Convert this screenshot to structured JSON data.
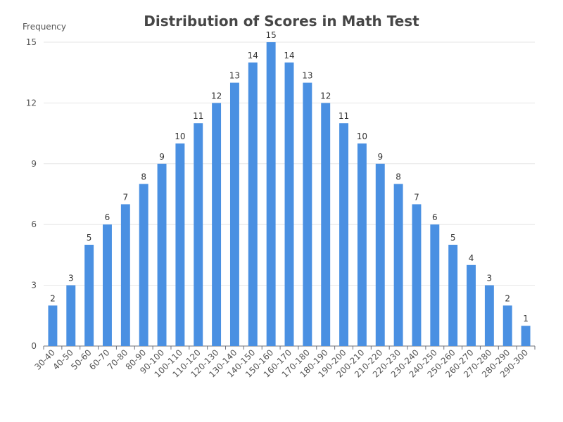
{
  "chart_data": {
    "type": "bar",
    "title": "Distribution of Scores in Math Test",
    "xlabel": "",
    "ylabel": "Frequency",
    "ylim": [
      0,
      15
    ],
    "yticks": [
      0,
      3,
      6,
      9,
      12,
      15
    ],
    "grid": true,
    "legend": "none",
    "bar_color": "#4a90e2",
    "categories": [
      "30-40",
      "40-50",
      "50-60",
      "60-70",
      "70-80",
      "80-90",
      "90-100",
      "100-110",
      "110-120",
      "120-130",
      "130-140",
      "140-150",
      "150-160",
      "160-170",
      "170-180",
      "180-190",
      "190-200",
      "200-210",
      "210-220",
      "220-230",
      "230-240",
      "240-250",
      "250-260",
      "260-270",
      "270-280",
      "280-290",
      "290-300"
    ],
    "values": [
      2,
      3,
      5,
      6,
      7,
      8,
      9,
      10,
      11,
      12,
      13,
      14,
      15,
      14,
      13,
      12,
      11,
      10,
      9,
      8,
      7,
      6,
      5,
      4,
      3,
      2,
      1
    ]
  }
}
